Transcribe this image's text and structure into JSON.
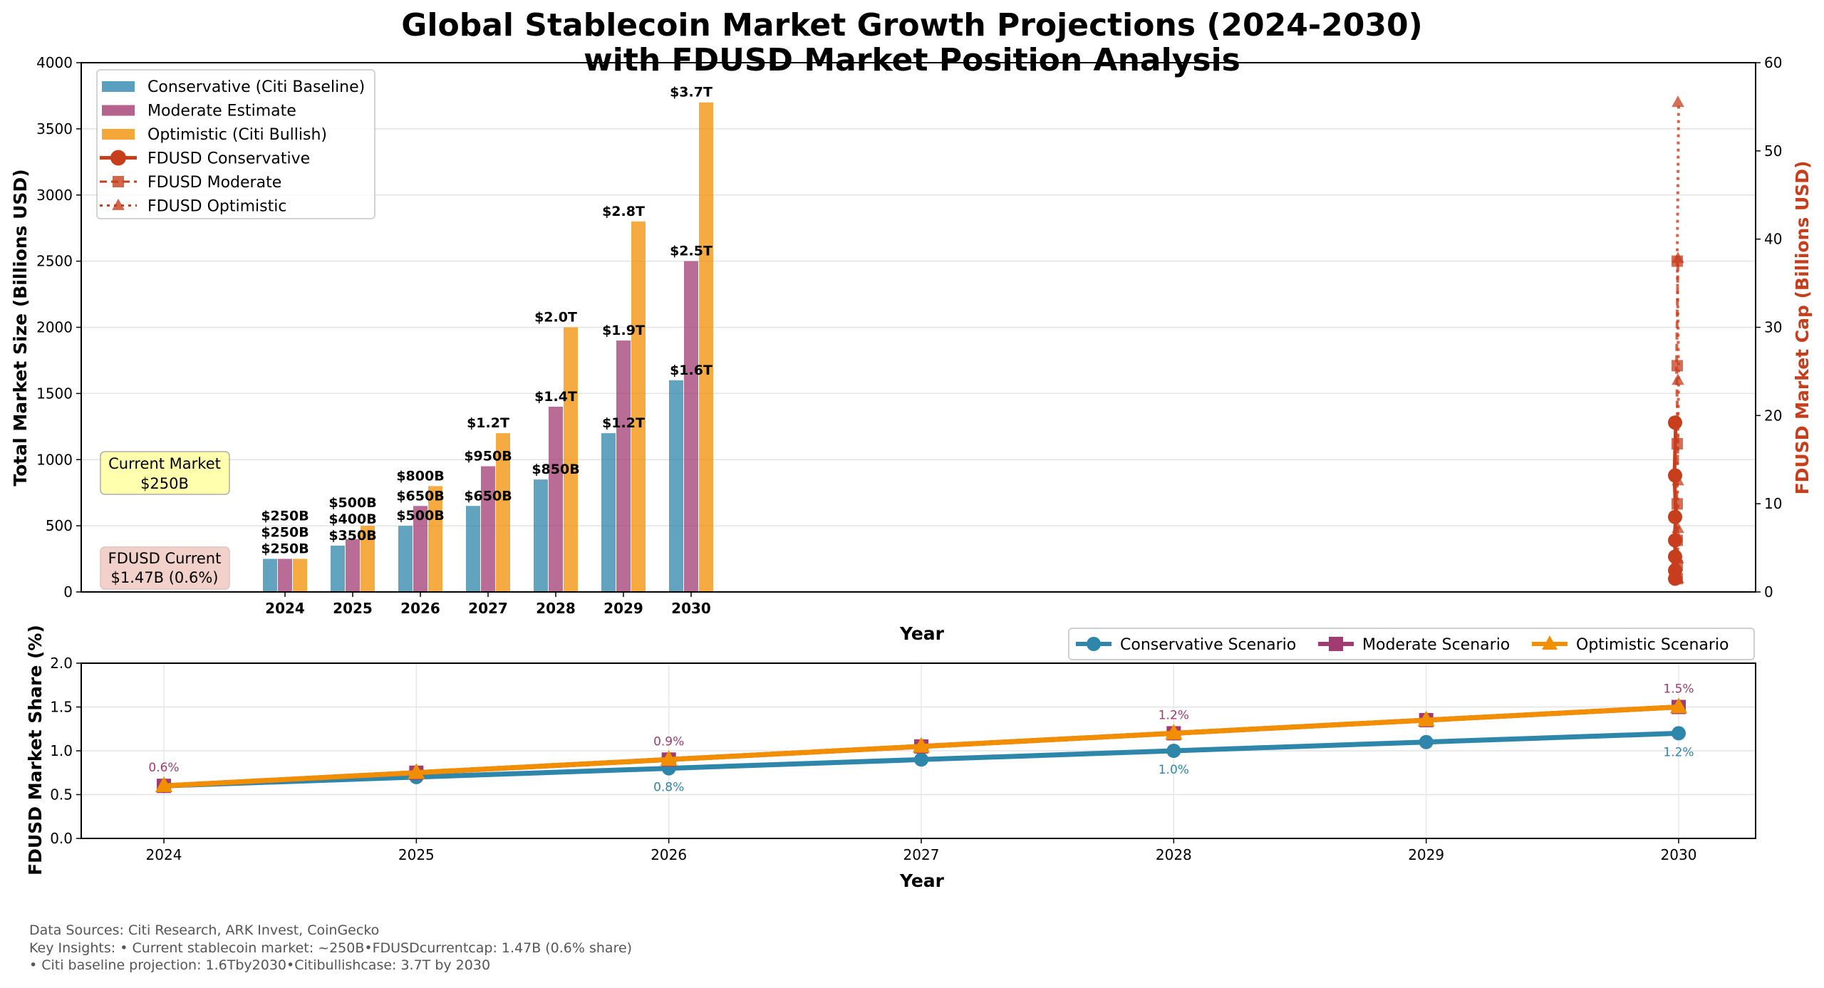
{
  "title_line1": "Global Stablecoin Market Growth Projections (2024-2030)",
  "title_line2": "with FDUSD Market Position Analysis",
  "colors": {
    "conservative": "#2E86AB",
    "moderate": "#A23B72",
    "optimistic": "#F18F01",
    "fdusd": "#C73E1D"
  },
  "chart_data": [
    {
      "type": "bar",
      "xlabel": "Year",
      "ylabel": "Total Market Size (Billions USD)",
      "y2label": "FDUSD Market Cap (Billions USD)",
      "ylim": [
        0,
        4000
      ],
      "y2lim": [
        0,
        60
      ],
      "yticks": [
        "0",
        "500",
        "1000",
        "1500",
        "2000",
        "2500",
        "3000",
        "3500",
        "4000"
      ],
      "y2ticks": [
        "0",
        "10",
        "20",
        "30",
        "40",
        "50",
        "60"
      ],
      "categories": [
        "2024",
        "2025",
        "2026",
        "2027",
        "2028",
        "2029",
        "2030"
      ],
      "grid": true,
      "legend_placement": "top-left",
      "series": [
        {
          "name": "Conservative (Citi Baseline)",
          "kind": "bar",
          "values": [
            250,
            350,
            500,
            650,
            850,
            1200,
            1600
          ],
          "labels": [
            "$250B",
            "$350B",
            "$500B",
            "$650B",
            "$850B",
            "$1.2T",
            "$1.6T"
          ]
        },
        {
          "name": "Moderate Estimate",
          "kind": "bar",
          "values": [
            250,
            400,
            650,
            950,
            1400,
            1900,
            2500
          ],
          "labels": [
            "$250B",
            "$400B",
            "$650B",
            "$950B",
            "$1.4T",
            "$1.9T",
            "$2.5T"
          ]
        },
        {
          "name": "Optimistic (Citi Bullish)",
          "kind": "bar",
          "values": [
            250,
            500,
            800,
            1200,
            2000,
            2800,
            3700
          ],
          "labels": [
            "$250B",
            "$500B",
            "$800B",
            "$1.2T",
            "$2.0T",
            "$2.8T",
            "$3.7T"
          ]
        },
        {
          "name": "FDUSD Conservative",
          "kind": "line",
          "axis": "right",
          "marker": "circle",
          "values": [
            1.5,
            2.45,
            4.0,
            5.85,
            8.5,
            13.2,
            19.2
          ]
        },
        {
          "name": "FDUSD Moderate",
          "kind": "line",
          "axis": "right",
          "marker": "square",
          "values": [
            1.5,
            3.0,
            5.85,
            9.98,
            16.8,
            25.65,
            37.5
          ]
        },
        {
          "name": "FDUSD Optimistic",
          "kind": "line",
          "axis": "right",
          "marker": "triangle",
          "values": [
            1.5,
            3.75,
            7.2,
            12.6,
            24.0,
            37.8,
            55.5
          ]
        }
      ],
      "annotations": [
        {
          "text_line1": "Current Market",
          "text_line2": "$250B"
        },
        {
          "text_line1": "FDUSD Current",
          "text_line2": "$1.47B (0.6%)"
        }
      ]
    },
    {
      "type": "line",
      "xlabel": "Year",
      "ylabel": "FDUSD Market Share (%)",
      "ylim": [
        0,
        2.0
      ],
      "yticks": [
        "0.0",
        "0.5",
        "1.0",
        "1.5",
        "2.0"
      ],
      "x": [
        "2024",
        "2025",
        "2026",
        "2027",
        "2028",
        "2029",
        "2030"
      ],
      "grid": true,
      "legend_placement": "top-right",
      "series": [
        {
          "name": "Conservative Scenario",
          "marker": "circle",
          "values": [
            0.6,
            0.7,
            0.8,
            0.9,
            1.0,
            1.1,
            1.2
          ],
          "point_labels": {
            "2026": "0.8%",
            "2028": "1.0%",
            "2030": "1.2%"
          }
        },
        {
          "name": "Moderate Scenario",
          "marker": "square",
          "values": [
            0.6,
            0.75,
            0.9,
            1.05,
            1.2,
            1.35,
            1.5
          ],
          "point_labels": {
            "2024": "0.6%",
            "2026": "0.9%",
            "2028": "1.2%",
            "2030": "1.5%"
          }
        },
        {
          "name": "Optimistic Scenario",
          "marker": "triangle",
          "values": [
            0.6,
            0.75,
            0.9,
            1.05,
            1.2,
            1.35,
            1.5
          ]
        }
      ]
    }
  ],
  "footer": {
    "line1": "Data Sources: Citi Research, ARK Invest, CoinGecko",
    "line2": "Key Insights: • Current stablecoin market: ~250B•FDUSDcurrentcap: 1.47B (0.6% share)",
    "line3": "• Citi baseline projection: 1.6Tby2030•Citibullishcase: 3.7T by 2030"
  }
}
